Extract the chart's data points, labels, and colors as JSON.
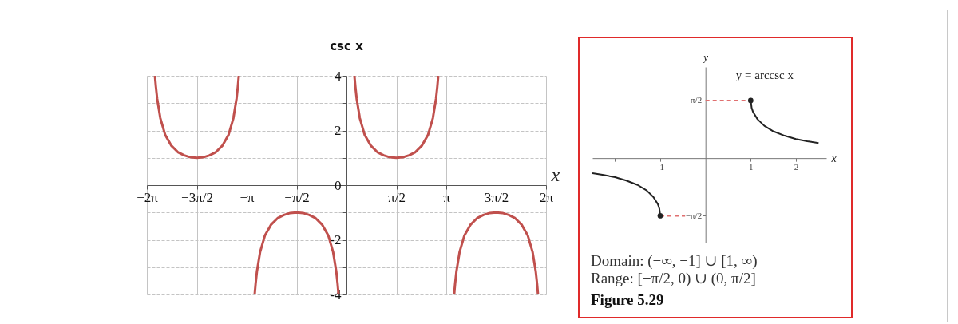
{
  "chart_data": [
    {
      "type": "line",
      "title": "csc x",
      "xlabel": "x",
      "xlim": [
        -6.2832,
        6.2832
      ],
      "ylim": [
        -4,
        4
      ],
      "xticks": [
        {
          "value": -6.2832,
          "label": "−2π"
        },
        {
          "value": -4.7124,
          "label": "−3π/2"
        },
        {
          "value": -3.1416,
          "label": "−π"
        },
        {
          "value": -1.5708,
          "label": "−π/2"
        },
        {
          "value": 1.5708,
          "label": "π/2"
        },
        {
          "value": 3.1416,
          "label": "π"
        },
        {
          "value": 4.7124,
          "label": "3π/2"
        },
        {
          "value": 6.2832,
          "label": "2π"
        }
      ],
      "yticks": [
        -4,
        {
          "value": -3,
          "label": null
        },
        -2,
        {
          "value": -1,
          "label": null
        },
        0,
        {
          "value": 1,
          "label": null
        },
        2,
        {
          "value": 3,
          "label": null
        },
        4
      ],
      "grid": true,
      "series": [
        {
          "color": "#c0504d",
          "x": [
            -6.03,
            -6.0,
            -5.96,
            -5.86,
            -5.71,
            -5.51,
            -5.31,
            -5.11,
            -4.91,
            -4.71,
            -4.51,
            -4.31,
            -4.11,
            -3.91,
            -3.71,
            -3.56,
            -3.46,
            -3.42,
            -3.39,
            -3.14,
            -2.89,
            -2.86,
            -2.82,
            -2.72,
            -2.57,
            -2.37,
            -2.17,
            -1.97,
            -1.77,
            -1.57,
            -1.37,
            -1.17,
            -0.97,
            -0.77,
            -0.57,
            -0.42,
            -0.32,
            -0.28,
            -0.25,
            0,
            0.25,
            0.28,
            0.32,
            0.42,
            0.57,
            0.77,
            0.97,
            1.17,
            1.37,
            1.57,
            1.77,
            1.97,
            2.17,
            2.37,
            2.57,
            2.72,
            2.82,
            2.86,
            2.89,
            3.14,
            3.39,
            3.42,
            3.46,
            3.56,
            3.71,
            3.91,
            4.11,
            4.31,
            4.51,
            4.71,
            4.91,
            5.11,
            5.31,
            5.51,
            5.71,
            5.86,
            5.96,
            6.0,
            6.03
          ],
          "values": [
            4,
            3.6,
            3.17,
            2.45,
            1.85,
            1.44,
            1.21,
            1.09,
            1.02,
            1,
            1.02,
            1.09,
            1.21,
            1.44,
            1.85,
            2.45,
            3.17,
            3.6,
            4,
            null,
            -4,
            -3.6,
            -3.17,
            -2.45,
            -1.85,
            -1.44,
            -1.21,
            -1.09,
            -1.02,
            -1,
            -1.02,
            -1.09,
            -1.21,
            -1.44,
            -1.85,
            -2.45,
            -3.17,
            -3.6,
            -4,
            null,
            4,
            3.6,
            3.17,
            2.45,
            1.85,
            1.44,
            1.21,
            1.09,
            1.02,
            1,
            1.02,
            1.09,
            1.21,
            1.44,
            1.85,
            2.45,
            3.17,
            3.6,
            4,
            null,
            -4,
            -3.6,
            -3.17,
            -2.45,
            -1.85,
            -1.44,
            -1.21,
            -1.09,
            -1.02,
            -1,
            -1.02,
            -1.09,
            -1.21,
            -1.44,
            -1.85,
            -2.45,
            -3.17,
            -3.6,
            -4
          ]
        }
      ]
    },
    {
      "type": "line",
      "xlabel": "x",
      "ylabel": "y",
      "xlim": [
        -2.5,
        2.67
      ],
      "ylim": [
        -2.3,
        2.48
      ],
      "xticks": [
        {
          "value": -2,
          "label": null
        },
        -1,
        1,
        2
      ],
      "yticks": [
        {
          "value": -1.5708,
          "label": "−π/2"
        },
        {
          "value": 1.5708,
          "label": "π/2"
        }
      ],
      "annotations": [
        "Domain: (−∞, −1] ∪ [1, ∞)",
        "Range: [−π/2, 0) ∪ (0, π/2]",
        "Figure 5.29"
      ],
      "series": [
        {
          "name": "y = arccsc x",
          "color": "#222222",
          "x": [
            -2.5,
            -2.25,
            -2,
            -1.75,
            -1.5,
            -1.3,
            -1.15,
            -1.05,
            -1.02,
            -1,
            0,
            1,
            1.02,
            1.05,
            1.15,
            1.3,
            1.5,
            1.75,
            2,
            2.25,
            2.5
          ],
          "values": [
            -0.41,
            -0.46,
            -0.52,
            -0.61,
            -0.73,
            -0.88,
            -1.06,
            -1.26,
            -1.37,
            -1.57,
            null,
            1.57,
            1.37,
            1.26,
            1.06,
            0.88,
            0.73,
            0.61,
            0.52,
            0.46,
            0.41
          ]
        },
        {
          "type": "line",
          "color": "#e07070",
          "line_style": "dashed",
          "x": [
            -1,
            -0.45
          ],
          "values": [
            -1.57,
            -1.57
          ]
        },
        {
          "type": "line",
          "color": "#e07070",
          "line_style": "dashed",
          "x": [
            0,
            1
          ],
          "values": [
            1.57,
            1.57
          ]
        },
        {
          "type": "scatter",
          "color": "#222222",
          "marker": "circle",
          "x": [
            -1,
            1
          ],
          "values": [
            -1.57,
            1.57
          ]
        }
      ]
    }
  ]
}
